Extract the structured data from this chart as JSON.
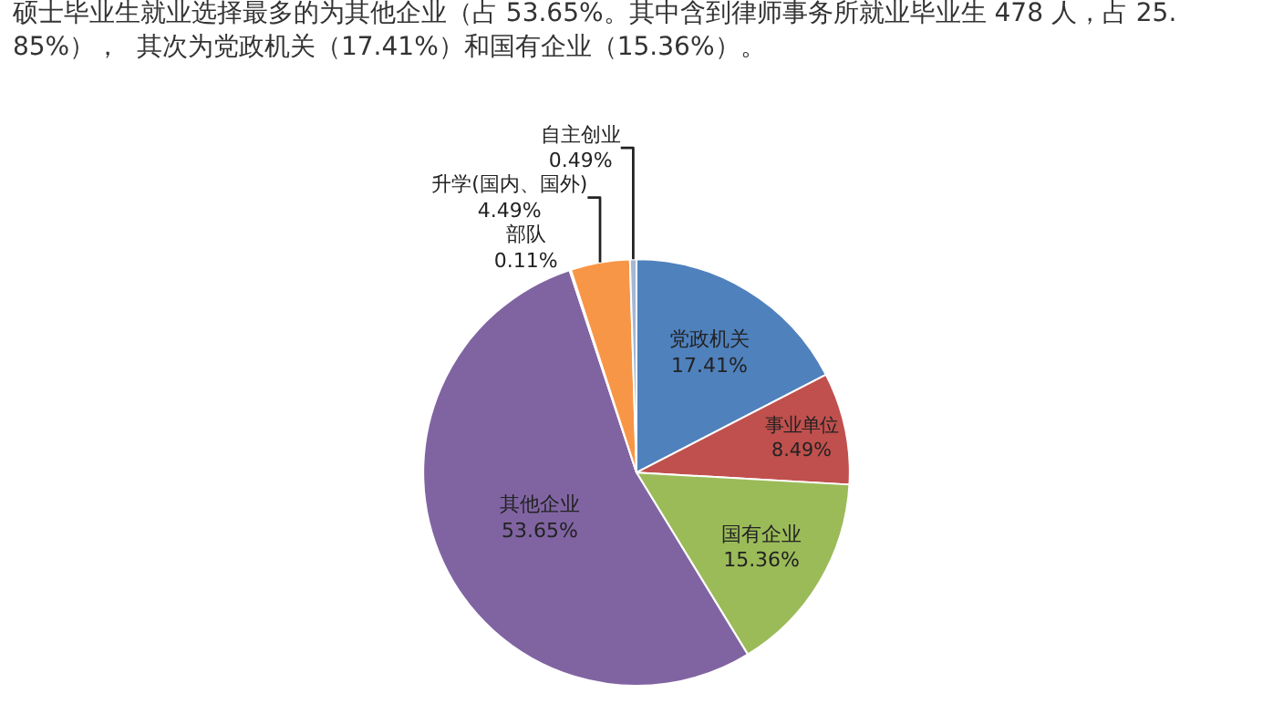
{
  "chart_data": {
    "type": "pie",
    "title": "硕士毕业生就业选择最多的为其他企业（占 53.65%。其中含到律师事务所就业毕业生 478 人，占 25.85%），  其次为党政机关（17.41%）和国有企业（15.36%）。",
    "categories": [
      "党政机关",
      "事业单位",
      "国有企业",
      "其他企业",
      "部队",
      "升学(国内、国外)",
      "自主创业"
    ],
    "values": [
      17.41,
      8.49,
      15.36,
      53.65,
      0.11,
      4.49,
      0.49
    ],
    "value_labels": [
      "17.41%",
      "8.49%",
      "15.36%",
      "53.65%",
      "0.11%",
      "4.49%",
      "0.49%"
    ],
    "colors": [
      "#4f81bd",
      "#c0504d",
      "#9bbb59",
      "#8064a2",
      "#4bacc6",
      "#f79646",
      "#a5b6d6"
    ],
    "legend": false
  }
}
